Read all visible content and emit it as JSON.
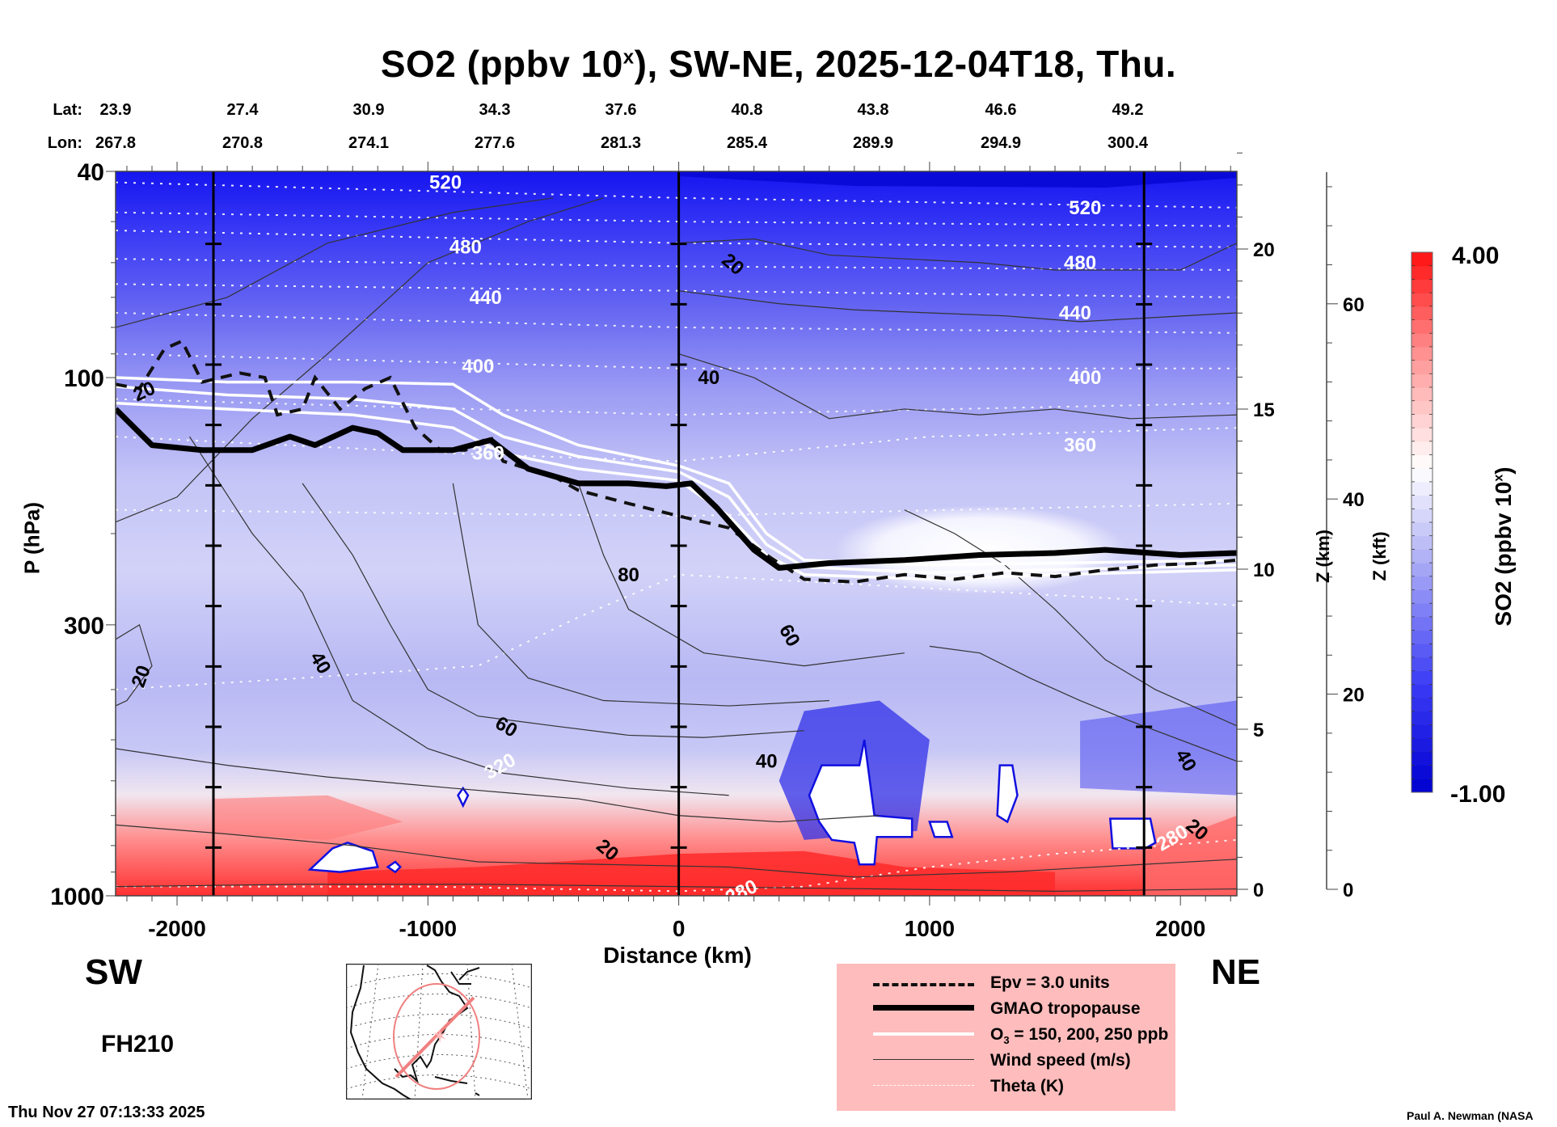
{
  "title": {
    "main": "SO2 (ppbv 10",
    "sup": "x",
    "rest": "), SW-NE, 2025-12-04T18, Thu."
  },
  "latlon": {
    "lat_label": "Lat:",
    "lon_label": "Lon:",
    "lat": [
      "23.9",
      "27.4",
      "30.9",
      "34.3",
      "37.6",
      "40.8",
      "43.8",
      "46.6",
      "49.2"
    ],
    "lon": [
      "267.8",
      "270.8",
      "274.1",
      "277.6",
      "281.3",
      "285.4",
      "289.9",
      "294.9",
      "300.4"
    ]
  },
  "directions": {
    "left": "SW",
    "right": "NE"
  },
  "forecast_hour": "FH210",
  "timestamp": "Thu Nov 27 07:13:33 2025",
  "credit": "Paul A. Newman (NASA",
  "legend": {
    "items": [
      {
        "label": "Epv = 3.0 units",
        "style": "dashed-thick"
      },
      {
        "label": "GMAO tropopause",
        "style": "solid-heavy"
      },
      {
        "label": "O3 = 150, 200, 250 ppb",
        "label_main": "O",
        "label_sub": "3",
        "label_rest": " = 150, 200, 250 ppb",
        "style": "solid-white"
      },
      {
        "label": "Wind speed (m/s)",
        "style": "solid-thin"
      },
      {
        "label": "Theta (K)",
        "style": "dotted-white"
      }
    ]
  },
  "colors": {
    "legend_bg": "#ffbcbc",
    "min_color": "#0000d0",
    "mid_color": "#ffffff",
    "max_color": "#ff1010"
  },
  "chart_data": {
    "type": "heatmap",
    "title": "SO2 (ppbv 10^x), SW-NE, 2025-12-04T18, Thu.",
    "xlabel": "Distance (km)",
    "ylabel": "P (hPa)",
    "y2label": "Z (km)",
    "y3label": "Z (kft)",
    "colorbar_label": "SO2 (ppbv 10^x)",
    "xlim": [
      -2245,
      2225
    ],
    "ylim": [
      1000,
      40
    ],
    "yscale": "log",
    "x_ticks": [
      -2000,
      -1000,
      0,
      1000,
      2000
    ],
    "x_tick_labels": [
      "-2000",
      "-1000",
      "0",
      "1000",
      "2000"
    ],
    "y_ticks": [
      40,
      100,
      300,
      1000
    ],
    "y_tick_labels": [
      "40",
      "100",
      "300",
      "1000"
    ],
    "z_km_ticks": [
      0,
      5,
      10,
      15,
      20
    ],
    "z_km_tick_labels": [
      "0",
      "5",
      "10",
      "15",
      "20"
    ],
    "z_kft_ticks": [
      0,
      20,
      40,
      60
    ],
    "z_kft_tick_labels": [
      "0",
      "20",
      "40",
      "60"
    ],
    "colorbar": {
      "min": -1.0,
      "max": 4.0,
      "min_label": "-1.00",
      "max_label": "4.00",
      "levels": 40
    },
    "vertical_markers_km": [
      -1855,
      0,
      1855
    ],
    "theta_levels": [
      280,
      320,
      360,
      400,
      440,
      480,
      520
    ],
    "theta_labels_shown": [
      "520",
      "480",
      "440",
      "400",
      "360",
      "320",
      "280",
      "520",
      "480",
      "440",
      "400",
      "360",
      "280",
      "280"
    ],
    "wind_labels_shown": [
      "20",
      "20",
      "40",
      "60",
      "80",
      "20",
      "40",
      "60",
      "20",
      "40",
      "40",
      "20"
    ],
    "tropopause_hpa": [
      [
        -2245,
        115
      ],
      [
        -2100,
        135
      ],
      [
        -1900,
        138
      ],
      [
        -1700,
        138
      ],
      [
        -1550,
        130
      ],
      [
        -1450,
        135
      ],
      [
        -1300,
        125
      ],
      [
        -1200,
        128
      ],
      [
        -1100,
        138
      ],
      [
        -900,
        138
      ],
      [
        -750,
        132
      ],
      [
        -600,
        150
      ],
      [
        -400,
        160
      ],
      [
        -200,
        160
      ],
      [
        -50,
        162
      ],
      [
        50,
        160
      ],
      [
        150,
        178
      ],
      [
        300,
        215
      ],
      [
        400,
        233
      ],
      [
        600,
        228
      ],
      [
        900,
        225
      ],
      [
        1200,
        220
      ],
      [
        1500,
        218
      ],
      [
        1700,
        215
      ],
      [
        2000,
        220
      ],
      [
        2225,
        218
      ]
    ],
    "o3_contours_hpa": {
      "150": [
        [
          -2245,
          100
        ],
        [
          -1800,
          102
        ],
        [
          -1300,
          102
        ],
        [
          -900,
          103
        ],
        [
          -700,
          118
        ],
        [
          -400,
          135
        ],
        [
          0,
          148
        ],
        [
          200,
          160
        ],
        [
          350,
          200
        ],
        [
          500,
          225
        ],
        [
          1000,
          230
        ],
        [
          1500,
          228
        ],
        [
          2225,
          225
        ]
      ],
      "200": [
        [
          -2245,
          104
        ],
        [
          -1800,
          108
        ],
        [
          -1300,
          110
        ],
        [
          -900,
          115
        ],
        [
          -700,
          130
        ],
        [
          -400,
          142
        ],
        [
          0,
          152
        ],
        [
          200,
          170
        ],
        [
          350,
          210
        ],
        [
          500,
          232
        ],
        [
          1000,
          238
        ],
        [
          1500,
          235
        ],
        [
          2225,
          230
        ]
      ],
      "250": [
        [
          -2245,
          112
        ],
        [
          -1800,
          115
        ],
        [
          -1300,
          118
        ],
        [
          -900,
          125
        ],
        [
          -700,
          140
        ],
        [
          -400,
          150
        ],
        [
          0,
          158
        ],
        [
          200,
          185
        ],
        [
          350,
          220
        ],
        [
          500,
          240
        ],
        [
          1000,
          245
        ],
        [
          1500,
          240
        ],
        [
          2225,
          235
        ]
      ]
    },
    "theta_lines_hpa": {
      "520": [
        [
          -2245,
          42
        ],
        [
          0,
          45
        ],
        [
          2225,
          47
        ]
      ],
      "480": [
        [
          -2245,
          52
        ],
        [
          0,
          55
        ],
        [
          2225,
          56
        ]
      ],
      "440": [
        [
          -2245,
          66
        ],
        [
          0,
          68
        ],
        [
          2225,
          70
        ]
      ],
      "400": [
        [
          -2245,
          90
        ],
        [
          0,
          96
        ],
        [
          2225,
          96
        ]
      ],
      "360": [
        [
          -2245,
          130
        ],
        [
          -900,
          140
        ],
        [
          0,
          145
        ],
        [
          1000,
          130
        ],
        [
          2225,
          125
        ]
      ],
      "320": [
        [
          -2245,
          400
        ],
        [
          -1500,
          380
        ],
        [
          -800,
          360
        ],
        [
          -400,
          290
        ],
        [
          0,
          240
        ],
        [
          1000,
          255
        ],
        [
          2225,
          275
        ]
      ],
      "280": [
        [
          -2245,
          960
        ],
        [
          -1000,
          960
        ],
        [
          0,
          980
        ],
        [
          500,
          960
        ],
        [
          1000,
          880
        ],
        [
          1500,
          830
        ],
        [
          2225,
          780
        ]
      ]
    }
  }
}
